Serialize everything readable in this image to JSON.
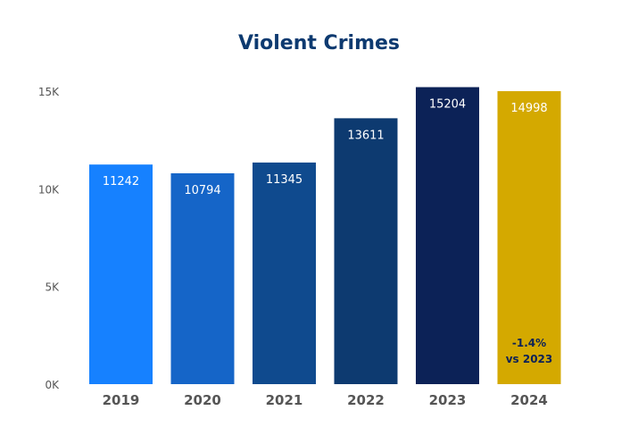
{
  "chart_data": {
    "type": "bar",
    "title": "Violent Crimes",
    "xlabel": "",
    "ylabel": "",
    "categories": [
      "2019",
      "2020",
      "2021",
      "2022",
      "2023",
      "2024"
    ],
    "values": [
      11242,
      10794,
      11345,
      13611,
      15204,
      14998
    ],
    "colors": [
      "#1681ff",
      "#1565c8",
      "#0f4a8e",
      "#0d3a70",
      "#0c2257",
      "#d4a900"
    ],
    "yticks": [
      0,
      5000,
      10000,
      15000
    ],
    "ytick_labels": [
      "0K",
      "5K",
      "10K",
      "15K"
    ],
    "ylim": [
      0,
      15000
    ],
    "grid": false,
    "annotation": {
      "category": "2024",
      "line1": "-1.4%",
      "line2": "vs 2023",
      "color": "#0c2257"
    }
  }
}
